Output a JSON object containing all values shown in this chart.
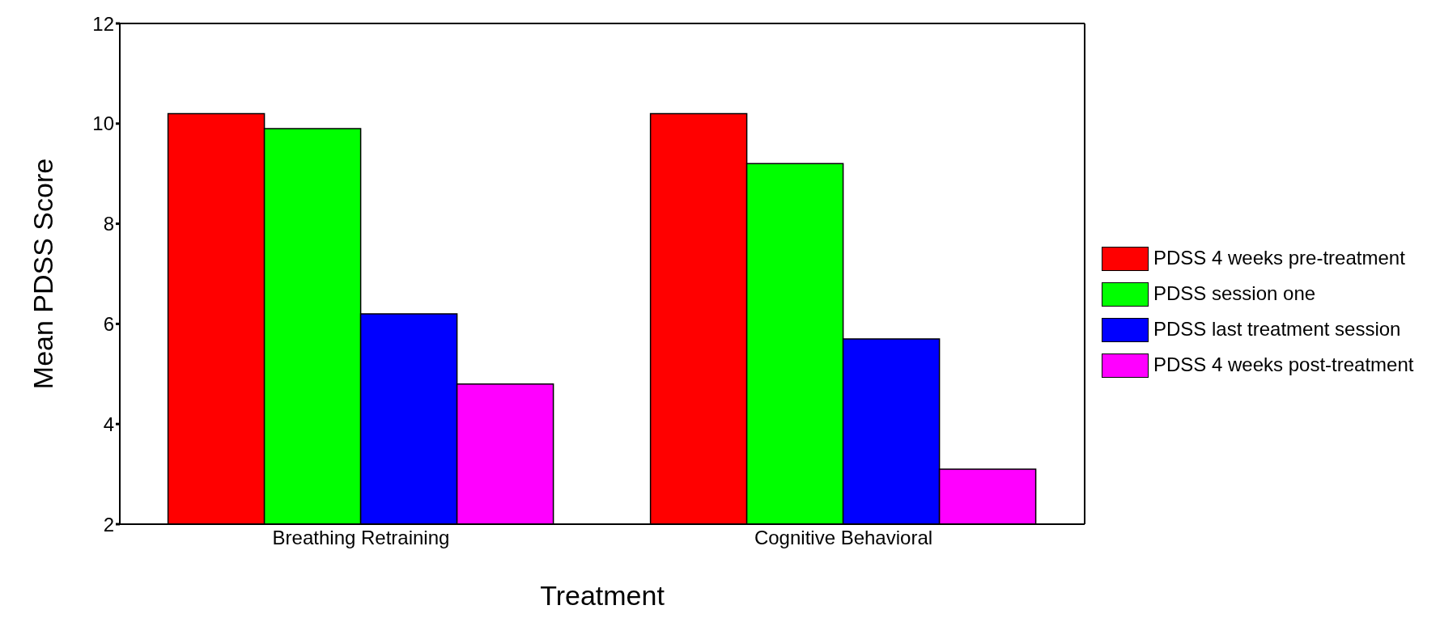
{
  "chart_data": {
    "type": "bar",
    "xlabel": "Treatment",
    "ylabel": "Mean PDSS Score",
    "categories": [
      "Breathing Retraining",
      "Cognitive Behavioral"
    ],
    "series": [
      {
        "name": "PDSS 4 weeks pre-treatment",
        "color": "#ff0000",
        "values": [
          10.2,
          10.2
        ]
      },
      {
        "name": "PDSS session one",
        "color": "#00ff00",
        "values": [
          9.9,
          9.2
        ]
      },
      {
        "name": "PDSS last treatment session",
        "color": "#0000ff",
        "values": [
          6.2,
          5.7
        ]
      },
      {
        "name": "PDSS 4 weeks post-treatment",
        "color": "#ff00ff",
        "values": [
          4.8,
          3.1
        ]
      }
    ],
    "ylim": [
      2,
      12
    ],
    "yticks": [
      2,
      4,
      6,
      8,
      10,
      12
    ],
    "grid": false,
    "legend": "right"
  }
}
